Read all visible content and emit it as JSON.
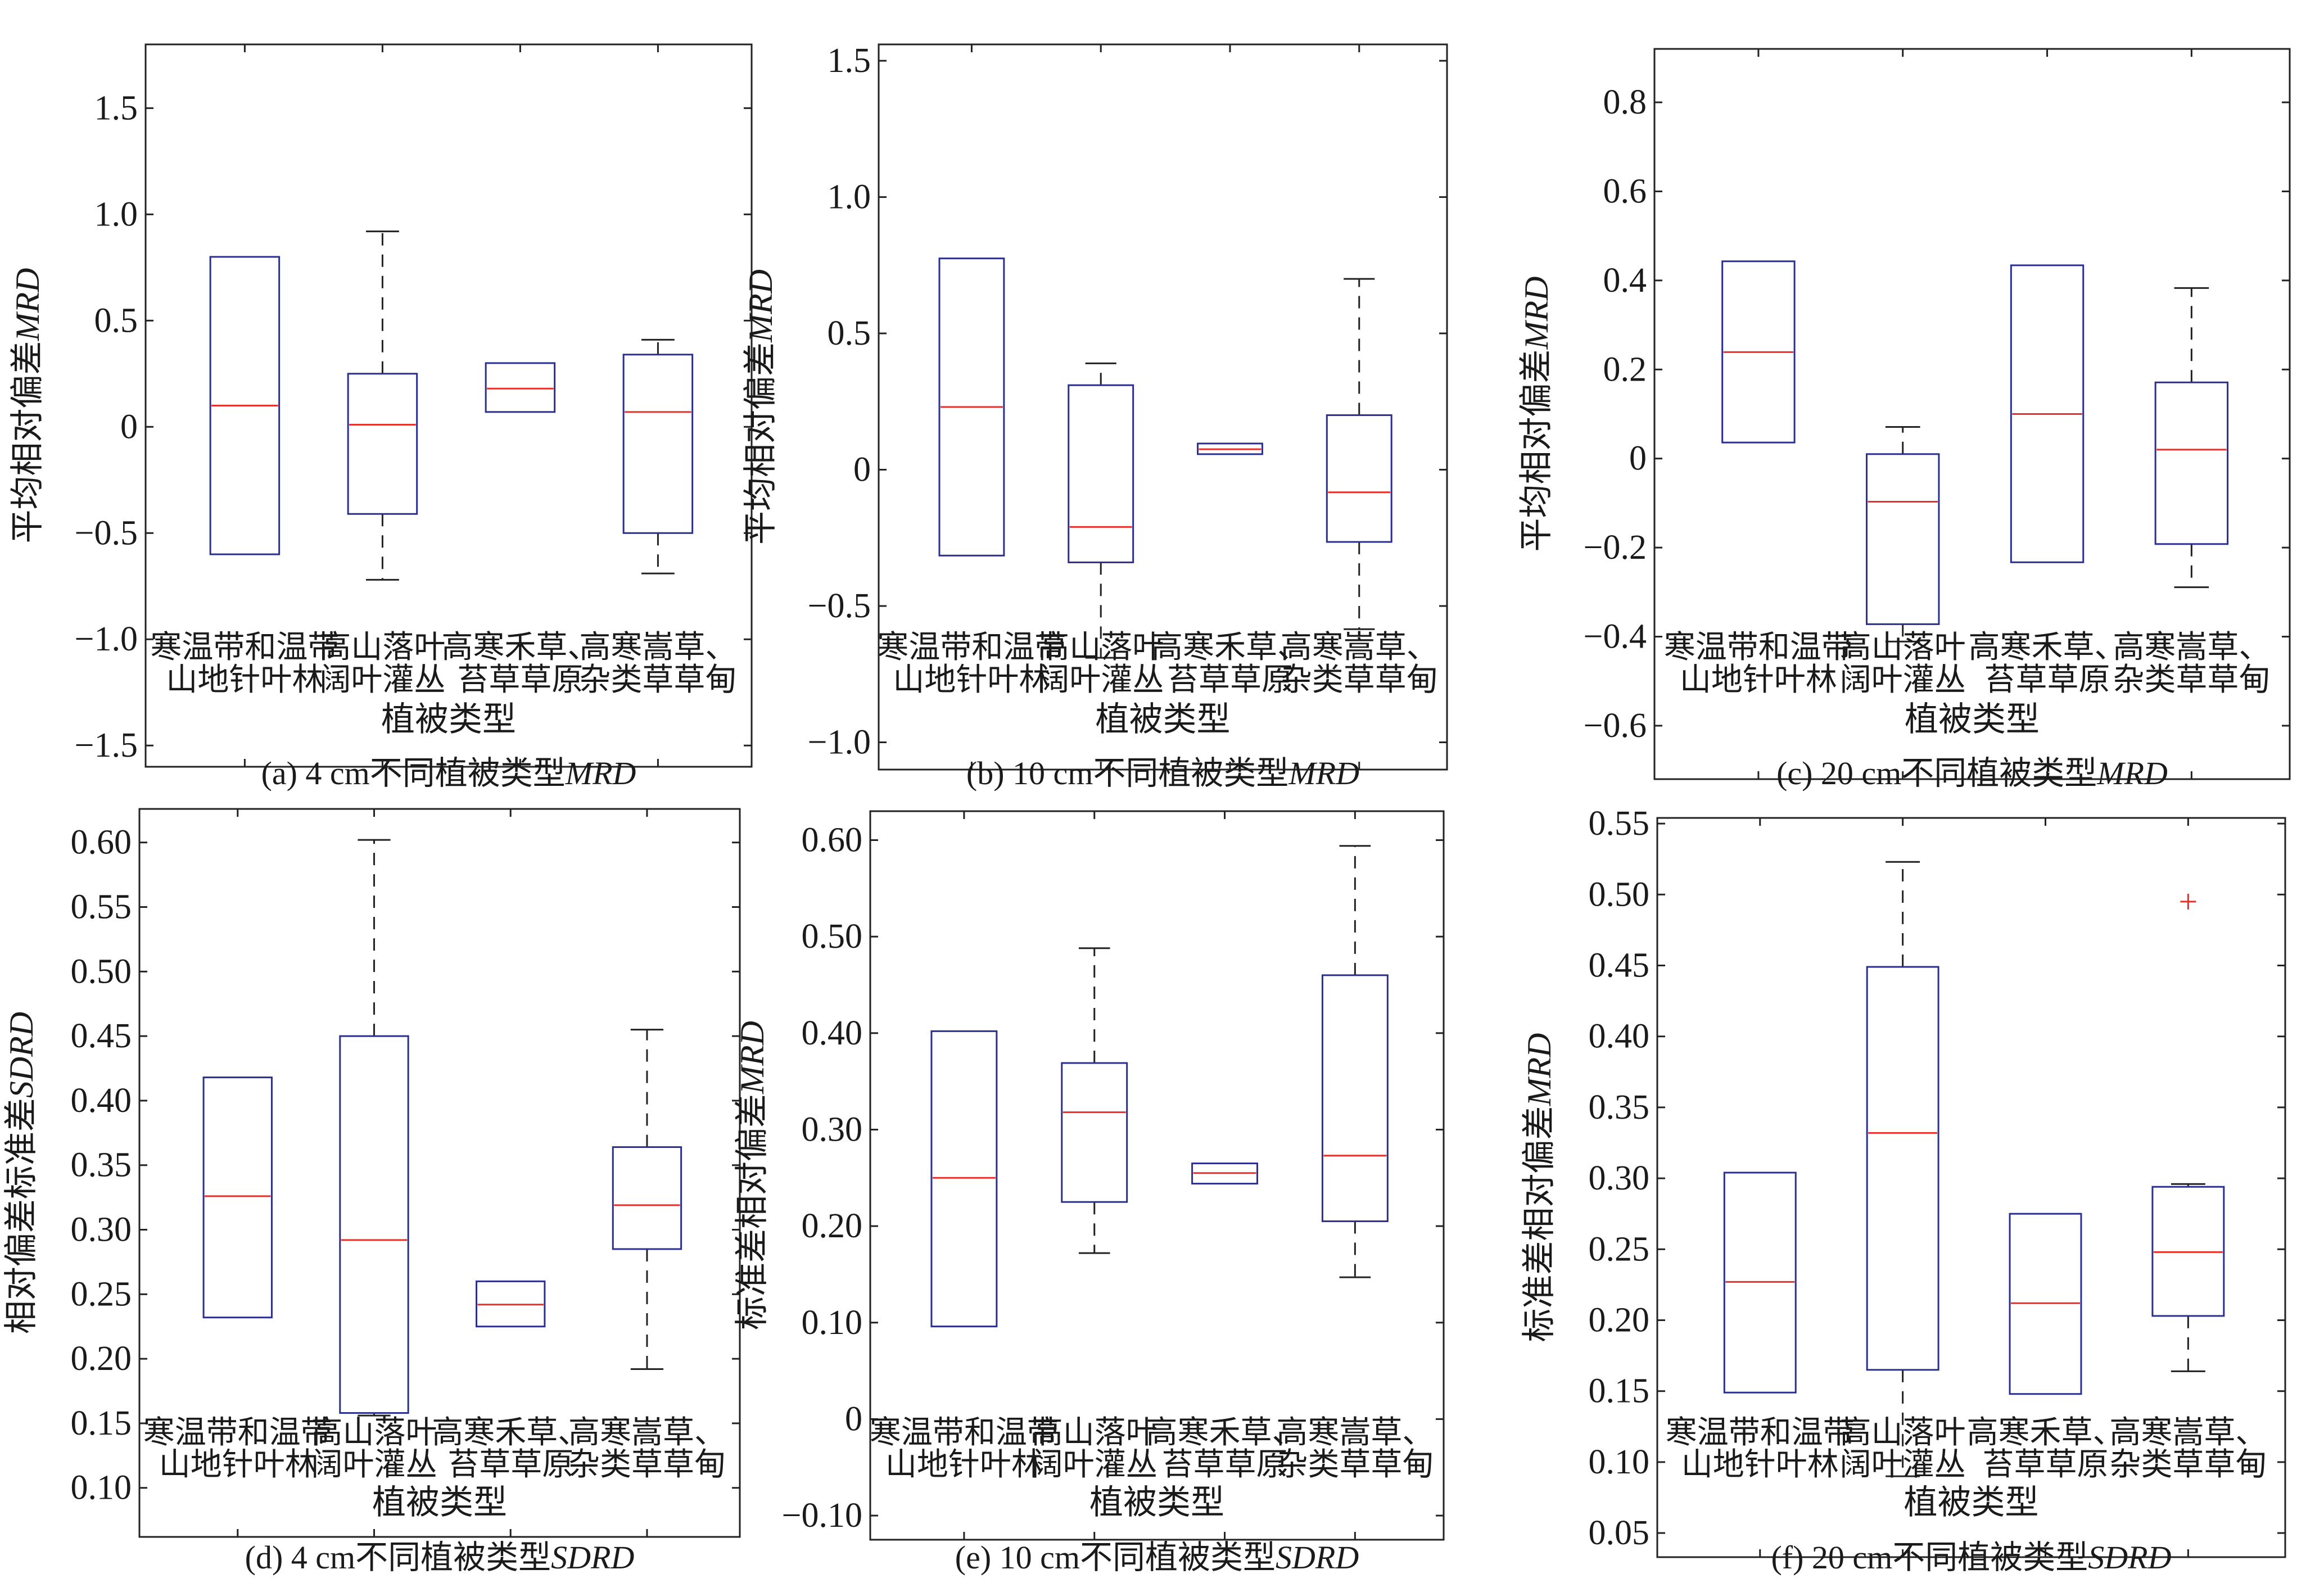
{
  "colors": {
    "box": "#2b2f8f",
    "median": "#e8302a",
    "whisker": "#222222",
    "outlier": "#e8302a",
    "axis": "#222222"
  },
  "chart_data": [
    {
      "id": "a",
      "type": "box",
      "caption": "(a) 4 cm不同植被类型",
      "caption_italic": "MRD",
      "xlabel": "植被类型",
      "ylabel": "平均相对偏差",
      "ylabel_italic": "MRD",
      "ylim": [
        -1.6,
        1.8
      ],
      "yticks": [
        -1.5,
        -1.0,
        -0.5,
        0,
        0.5,
        1.0,
        1.5
      ],
      "ytick_labels": [
        "−1.5",
        "−1.0",
        "−0.5",
        "0",
        "0.5",
        "1.0",
        "1.5"
      ],
      "categories": [
        [
          "寒温带和温带",
          "山地针叶林"
        ],
        [
          "高山落叶",
          "阔叶灌丛"
        ],
        [
          "高寒禾草、",
          "苔草草原"
        ],
        [
          "高寒嵩草、",
          "杂类草草甸"
        ]
      ],
      "boxes": [
        {
          "whisker_low": null,
          "q1": -0.6,
          "median": 0.1,
          "q3": 0.8,
          "whisker_high": null,
          "outliers": []
        },
        {
          "whisker_low": -0.72,
          "q1": -0.41,
          "median": 0.01,
          "q3": 0.25,
          "whisker_high": 0.92,
          "outliers": []
        },
        {
          "whisker_low": null,
          "q1": 0.07,
          "median": 0.18,
          "q3": 0.3,
          "whisker_high": null,
          "outliers": []
        },
        {
          "whisker_low": -0.69,
          "q1": -0.5,
          "median": 0.07,
          "q3": 0.34,
          "whisker_high": 0.41,
          "outliers": []
        }
      ]
    },
    {
      "id": "b",
      "type": "box",
      "caption": "(b) 10 cm不同植被类型",
      "caption_italic": "MRD",
      "xlabel": "植被类型",
      "ylabel": "平均相对偏差",
      "ylabel_italic": "MRD",
      "ylim": [
        -1.1,
        1.56
      ],
      "yticks": [
        -1.0,
        -0.5,
        0,
        0.5,
        1.0,
        1.5
      ],
      "ytick_labels": [
        "−1.0",
        "−0.5",
        "0",
        "0.5",
        "1.0",
        "1.5"
      ],
      "categories": [
        [
          "寒温带和温带",
          "山地针叶林"
        ],
        [
          "高山落叶",
          "阔叶灌丛"
        ],
        [
          "高寒禾草、",
          "苔草草原"
        ],
        [
          "高寒嵩草、",
          "杂类草草甸"
        ]
      ],
      "boxes": [
        {
          "whisker_low": null,
          "q1": -0.315,
          "median": 0.23,
          "q3": 0.775,
          "whisker_high": null,
          "outliers": []
        },
        {
          "whisker_low": -0.69,
          "q1": -0.34,
          "median": -0.21,
          "q3": 0.31,
          "whisker_high": 0.39,
          "outliers": []
        },
        {
          "whisker_low": null,
          "q1": 0.057,
          "median": 0.075,
          "q3": 0.096,
          "whisker_high": null,
          "outliers": []
        },
        {
          "whisker_low": -0.585,
          "q1": -0.265,
          "median": -0.083,
          "q3": 0.2,
          "whisker_high": 0.7,
          "outliers": []
        }
      ]
    },
    {
      "id": "c",
      "type": "box",
      "caption": "(c) 20 cm不同植被类型",
      "caption_italic": "MRD",
      "xlabel": "植被类型",
      "ylabel": "平均相对偏差",
      "ylabel_italic": "MRD",
      "ylim": [
        -0.72,
        0.92
      ],
      "yticks": [
        -0.6,
        -0.4,
        -0.2,
        0,
        0.2,
        0.4,
        0.6,
        0.8
      ],
      "ytick_labels": [
        "−0.6",
        "−0.4",
        "−0.2",
        "0",
        "0.2",
        "0.4",
        "0.6",
        "0.8"
      ],
      "categories": [
        [
          "寒温带和温带",
          "山地针叶林"
        ],
        [
          "高山落叶",
          "阔叶灌丛"
        ],
        [
          "高寒禾草、",
          "苔草草原"
        ],
        [
          "高寒嵩草、",
          "杂类草草甸"
        ]
      ],
      "boxes": [
        {
          "whisker_low": null,
          "q1": 0.036,
          "median": 0.239,
          "q3": 0.443,
          "whisker_high": null,
          "outliers": []
        },
        {
          "whisker_low": -0.411,
          "q1": -0.372,
          "median": -0.097,
          "q3": 0.01,
          "whisker_high": 0.071,
          "outliers": []
        },
        {
          "whisker_low": null,
          "q1": -0.233,
          "median": 0.1,
          "q3": 0.434,
          "whisker_high": null,
          "outliers": []
        },
        {
          "whisker_low": -0.289,
          "q1": -0.192,
          "median": 0.02,
          "q3": 0.171,
          "whisker_high": 0.383,
          "outliers": []
        }
      ]
    },
    {
      "id": "d",
      "type": "box",
      "caption": "(d) 4 cm不同植被类型",
      "caption_italic": "SDRD",
      "xlabel": "植被类型",
      "ylabel": "相对偏差标准差",
      "ylabel_italic": "SDRD",
      "ylim": [
        0.062,
        0.626
      ],
      "yticks": [
        0.1,
        0.15,
        0.2,
        0.25,
        0.3,
        0.35,
        0.4,
        0.45,
        0.5,
        0.55,
        0.6
      ],
      "ytick_labels": [
        "0.10",
        "0.15",
        "0.20",
        "0.25",
        "0.30",
        "0.35",
        "0.40",
        "0.45",
        "0.50",
        "0.55",
        "0.60"
      ],
      "categories": [
        [
          "寒温带和温带",
          "山地针叶林"
        ],
        [
          "高山落叶",
          "阔叶灌丛"
        ],
        [
          "高寒禾草、",
          "苔草草原"
        ],
        [
          "高寒嵩草、",
          "杂类草草甸"
        ]
      ],
      "boxes": [
        {
          "whisker_low": null,
          "q1": 0.232,
          "median": 0.326,
          "q3": 0.418,
          "whisker_high": null,
          "outliers": []
        },
        {
          "whisker_low": 0.156,
          "q1": 0.158,
          "median": 0.292,
          "q3": 0.45,
          "whisker_high": 0.602,
          "outliers": []
        },
        {
          "whisker_low": null,
          "q1": 0.225,
          "median": 0.242,
          "q3": 0.26,
          "whisker_high": null,
          "outliers": []
        },
        {
          "whisker_low": 0.192,
          "q1": 0.285,
          "median": 0.319,
          "q3": 0.364,
          "whisker_high": 0.455,
          "outliers": []
        }
      ]
    },
    {
      "id": "e",
      "type": "box",
      "caption": "(e) 10 cm不同植被类型",
      "caption_italic": "SDRD",
      "xlabel": "植被类型",
      "ylabel": "标准差相对偏差",
      "ylabel_italic": "MRD",
      "ylim": [
        -0.125,
        0.63
      ],
      "yticks": [
        -0.1,
        0,
        0.1,
        0.2,
        0.3,
        0.4,
        0.5,
        0.6
      ],
      "ytick_labels": [
        "−0.10",
        "0",
        "0.10",
        "0.20",
        "0.30",
        "0.40",
        "0.50",
        "0.60"
      ],
      "categories": [
        [
          "寒温带和温带",
          "山地针叶林"
        ],
        [
          "高山落叶",
          "阔叶灌丛"
        ],
        [
          "高寒禾草、",
          "苔草草原"
        ],
        [
          "高寒嵩草、",
          "杂类草草甸"
        ]
      ],
      "boxes": [
        {
          "whisker_low": null,
          "q1": 0.096,
          "median": 0.25,
          "q3": 0.402,
          "whisker_high": null,
          "outliers": []
        },
        {
          "whisker_low": 0.172,
          "q1": 0.225,
          "median": 0.318,
          "q3": 0.369,
          "whisker_high": 0.488,
          "outliers": []
        },
        {
          "whisker_low": null,
          "q1": 0.244,
          "median": 0.255,
          "q3": 0.265,
          "whisker_high": null,
          "outliers": []
        },
        {
          "whisker_low": 0.147,
          "q1": 0.205,
          "median": 0.273,
          "q3": 0.46,
          "whisker_high": 0.594,
          "outliers": []
        }
      ]
    },
    {
      "id": "f",
      "type": "box",
      "caption": "(f) 20 cm不同植被类型",
      "caption_italic": "SDRD",
      "xlabel": "植被类型",
      "ylabel": "标准差相对偏差",
      "ylabel_italic": "MRD",
      "ylim": [
        0.033,
        0.554
      ],
      "yticks": [
        0.05,
        0.1,
        0.15,
        0.2,
        0.25,
        0.3,
        0.35,
        0.4,
        0.45,
        0.5,
        0.55
      ],
      "ytick_labels": [
        "0.05",
        "0.10",
        "0.15",
        "0.20",
        "0.25",
        "0.30",
        "0.35",
        "0.40",
        "0.45",
        "0.50",
        "0.55"
      ],
      "categories": [
        [
          "寒温带和温带",
          "山地针叶林"
        ],
        [
          "高山落叶",
          "阔叶灌丛"
        ],
        [
          "高寒禾草、",
          "苔草草原"
        ],
        [
          "高寒嵩草、",
          "杂类草草甸"
        ]
      ],
      "boxes": [
        {
          "whisker_low": null,
          "q1": 0.149,
          "median": 0.227,
          "q3": 0.304,
          "whisker_high": null,
          "outliers": []
        },
        {
          "whisker_low": 0.09,
          "q1": 0.165,
          "median": 0.332,
          "q3": 0.449,
          "whisker_high": 0.523,
          "outliers": []
        },
        {
          "whisker_low": null,
          "q1": 0.148,
          "median": 0.212,
          "q3": 0.275,
          "whisker_high": null,
          "outliers": []
        },
        {
          "whisker_low": 0.164,
          "q1": 0.203,
          "median": 0.248,
          "q3": 0.294,
          "whisker_high": 0.296,
          "outliers": [
            0.495
          ]
        }
      ]
    }
  ]
}
